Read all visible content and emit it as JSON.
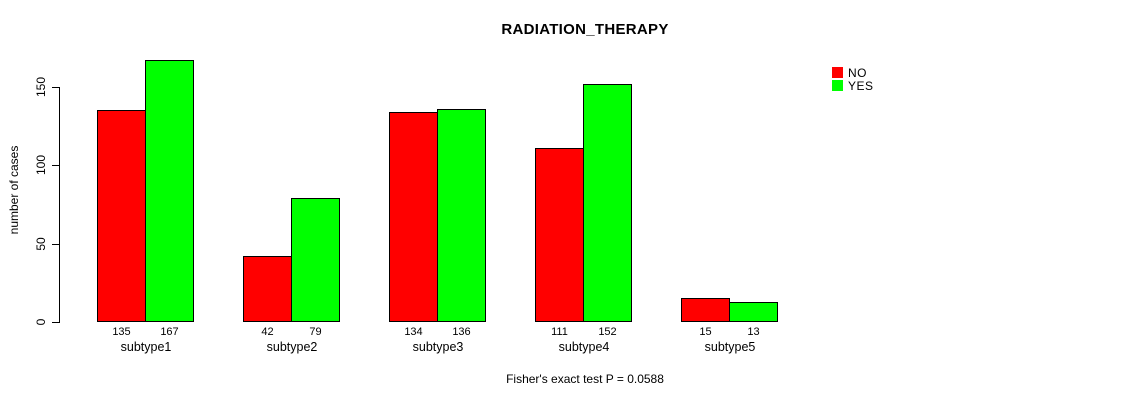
{
  "chart_data": {
    "type": "bar",
    "title": "RADIATION_THERAPY",
    "ylabel": "number of cases",
    "xlabel": "",
    "categories": [
      "subtype1",
      "subtype2",
      "subtype3",
      "subtype4",
      "subtype5"
    ],
    "series": [
      {
        "name": "NO",
        "color": "#FF0000",
        "values": [
          135,
          42,
          134,
          111,
          15
        ]
      },
      {
        "name": "YES",
        "color": "#00FF00",
        "values": [
          167,
          79,
          136,
          152,
          13
        ]
      }
    ],
    "yticks": [
      0,
      50,
      100,
      150
    ],
    "ylim": [
      0,
      175
    ],
    "grid": false,
    "value_labels_shown": true,
    "legend_position": "top-right",
    "legend_items": [
      {
        "label": "NO",
        "color": "#FF0000"
      },
      {
        "label": "YES",
        "color": "#00FF00"
      }
    ],
    "caption": "Fisher's exact test P = 0.0588"
  }
}
